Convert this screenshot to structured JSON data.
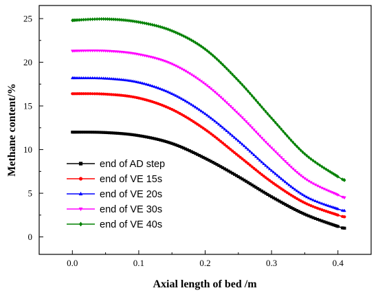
{
  "chart_data": {
    "type": "line",
    "title": "",
    "xlabel": "Axial length of bed /m",
    "ylabel": "Methane content/%",
    "xlim": [
      -0.05,
      0.45
    ],
    "ylim": [
      -2,
      26.5
    ],
    "xticks": [
      0.0,
      0.1,
      0.2,
      0.3,
      0.4
    ],
    "xtick_labels": [
      "0.0",
      "0.1",
      "0.2",
      "0.3",
      "0.4"
    ],
    "yticks": [
      0,
      5,
      10,
      15,
      20,
      25
    ],
    "ytick_labels": [
      "0",
      "5",
      "10",
      "15",
      "20",
      "25"
    ],
    "grid": false,
    "legend_position": "bottom-left",
    "x": [
      0.0,
      0.05,
      0.1,
      0.15,
      0.2,
      0.25,
      0.3,
      0.35,
      0.4,
      0.41
    ],
    "series": [
      {
        "name": "end of AD step",
        "color": "#000000",
        "marker": "square",
        "values": [
          12.0,
          11.95,
          11.6,
          10.7,
          9.0,
          6.9,
          4.6,
          2.6,
          1.2,
          1.0
        ]
      },
      {
        "name": "end of VE 15s",
        "color": "#ff0000",
        "marker": "circle",
        "values": [
          16.4,
          16.35,
          15.9,
          14.6,
          12.3,
          9.3,
          6.3,
          3.9,
          2.5,
          2.3
        ]
      },
      {
        "name": "end of VE 20s",
        "color": "#0000ff",
        "marker": "triangle-up",
        "values": [
          18.2,
          18.15,
          17.7,
          16.4,
          14.1,
          11.0,
          7.6,
          4.7,
          3.2,
          3.0
        ]
      },
      {
        "name": "end of VE 30s",
        "color": "#ff00ff",
        "marker": "triangle-down",
        "values": [
          21.3,
          21.3,
          20.9,
          19.8,
          17.5,
          14.1,
          10.2,
          6.7,
          4.8,
          4.5
        ]
      },
      {
        "name": "end of VE 40s",
        "color": "#008000",
        "marker": "diamond",
        "values": [
          24.8,
          24.95,
          24.6,
          23.6,
          21.5,
          17.9,
          13.6,
          9.5,
          6.9,
          6.5
        ]
      }
    ]
  }
}
